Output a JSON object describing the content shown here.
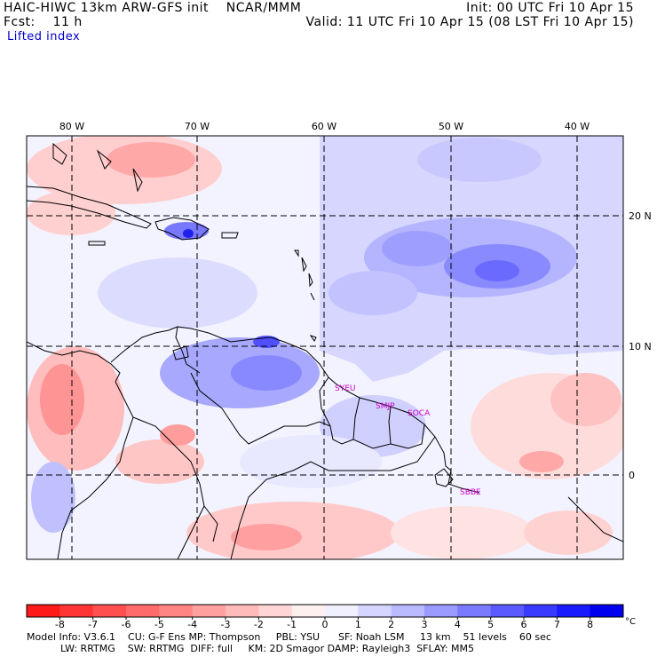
{
  "header": {
    "model_line": "HAIC-HIWC 13km ARW-GFS init    NCAR/MMM",
    "fcst_label": "Fcst:",
    "fcst_value": "11 h",
    "init": "Init: 00 UTC Fri 10 Apr 15",
    "valid": "Valid: 11 UTC Fri 10 Apr 15 (08 LST Fri 10 Apr 15)",
    "field": "Lifted index"
  },
  "map": {
    "longitude_labels": [
      "80 W",
      "70 W",
      "60 W",
      "50 W",
      "40 W"
    ],
    "latitude_labels": [
      "20 N",
      "10 N",
      "0"
    ],
    "stations": [
      "SYEU",
      "SMJP",
      "SOCA",
      "SBBE"
    ],
    "station_color": "#cc00cc"
  },
  "colorbar": {
    "ticks": [
      "-8",
      "-7",
      "-6",
      "-5",
      "-4",
      "-3",
      "-2",
      "-1",
      "0",
      "1",
      "2",
      "3",
      "4",
      "5",
      "6",
      "7",
      "8"
    ],
    "unit": "°C",
    "colors": [
      "#ff1a1a",
      "#ff3535",
      "#ff4f4f",
      "#ff6a6a",
      "#ff8585",
      "#ffa0a0",
      "#ffbaba",
      "#ffd5d5",
      "#fff0f0",
      "#f0f0ff",
      "#d5d5ff",
      "#babaff",
      "#9a9aff",
      "#7a7aff",
      "#5a5aff",
      "#3a3aff",
      "#1a1aff",
      "#0000ee"
    ]
  },
  "model_info": {
    "line1": "Model Info: V3.6.1    CU: G-F Ens MP: Thompson     PBL: YSU      SF: Noah LSM     13 km    51 levels    60 sec",
    "line2": "LW: RRTMG    SW: RRTMG  DIFF: full     KM: 2D Smagor DAMP: Rayleigh3  SFLAY: MM5"
  }
}
